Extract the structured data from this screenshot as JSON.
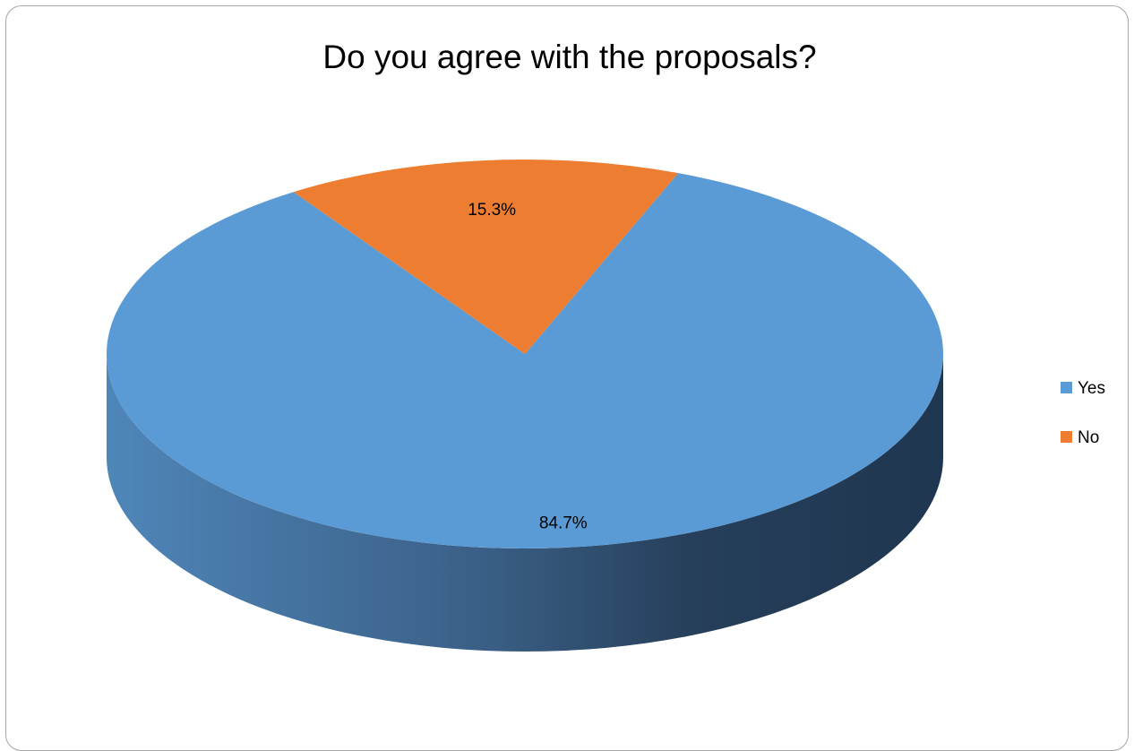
{
  "chart_data": {
    "type": "pie",
    "title": "Do you agree with the proposals?",
    "categories": [
      "Yes",
      "No"
    ],
    "values": [
      84.7,
      15.3
    ],
    "value_labels": [
      "84.7%",
      "15.3%"
    ],
    "colors": [
      "#5b9bd5",
      "#ed7d31"
    ],
    "legend_position": "right",
    "style": "3d"
  }
}
